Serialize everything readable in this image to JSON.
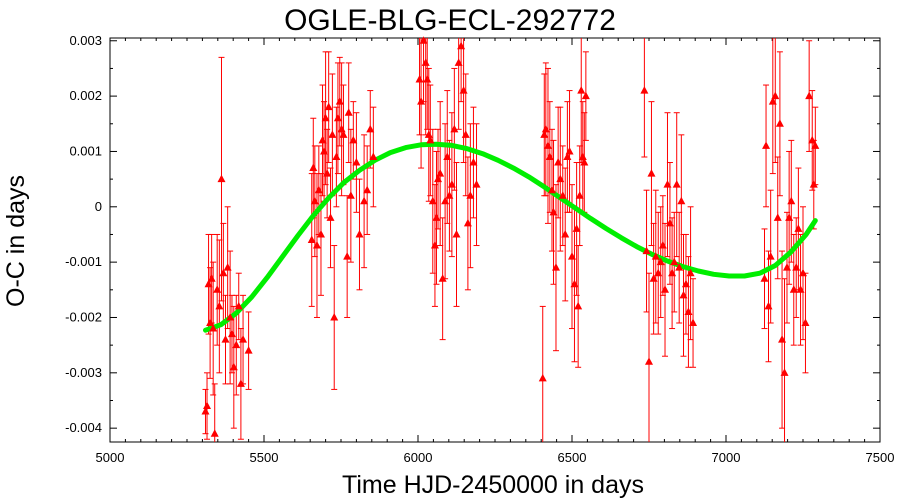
{
  "chart_data": {
    "type": "scatter",
    "title": "OGLE-BLG-ECL-292772",
    "xlabel": "Time HJD-2450000 in days",
    "ylabel": "O-C in days",
    "xlim": [
      5000,
      7500
    ],
    "ylim": [
      -0.00425,
      0.00305
    ],
    "xticks": [
      5000,
      5500,
      6000,
      6500,
      7000,
      7500
    ],
    "xtick_labels": [
      "5000",
      "5500",
      "6000",
      "6500",
      "7000",
      "7500"
    ],
    "yticks": [
      -0.004,
      -0.003,
      -0.002,
      -0.001,
      0,
      0.001,
      0.002,
      0.003
    ],
    "ytick_labels": [
      "-0.004",
      "-0.003",
      "-0.002",
      "-0.001",
      "0",
      "0.001",
      "0.002",
      "0.003"
    ],
    "grid": false,
    "colors": {
      "points": "#ff0000",
      "fit": "#00ee00"
    },
    "series": [
      {
        "type": "scatter-errorbar",
        "marker": "triangle",
        "x": [
          5310,
          5315,
          5320,
          5325,
          5330,
          5335,
          5340,
          5348,
          5355,
          5362,
          5368,
          5375,
          5382,
          5390,
          5396,
          5402,
          5410,
          5418,
          5425,
          5432,
          5450,
          5655,
          5660,
          5665,
          5672,
          5678,
          5685,
          5690,
          5695,
          5700,
          5705,
          5710,
          5716,
          5722,
          5728,
          5735,
          5740,
          5746,
          5752,
          5758,
          5770,
          5775,
          5782,
          5790,
          5800,
          5810,
          5825,
          5835,
          5845,
          5855,
          6005,
          6010,
          6018,
          6025,
          6030,
          6035,
          6040,
          6048,
          6055,
          6060,
          6065,
          6072,
          6080,
          6088,
          6095,
          6102,
          6110,
          6118,
          6125,
          6132,
          6140,
          6148,
          6155,
          6162,
          6170,
          6180,
          6190,
          6405,
          6410,
          6415,
          6422,
          6428,
          6435,
          6440,
          6448,
          6455,
          6462,
          6470,
          6478,
          6485,
          6492,
          6500,
          6508,
          6515,
          6520,
          6525,
          6530,
          6535,
          6540,
          6545,
          6735,
          6742,
          6750,
          6758,
          6765,
          6772,
          6780,
          6788,
          6795,
          6802,
          6810,
          6818,
          6825,
          6832,
          6840,
          6848,
          6855,
          6862,
          6870,
          6878,
          6885,
          6893,
          7125,
          7130,
          7138,
          7145,
          7152,
          7160,
          7168,
          7175,
          7182,
          7190,
          7198,
          7205,
          7212,
          7220,
          7228,
          7235,
          7242,
          7250,
          7258,
          7270,
          7280,
          7285,
          7290
        ],
        "y": [
          -0.0037,
          -0.0036,
          -0.0014,
          -0.0021,
          -0.0013,
          -0.0022,
          -0.0041,
          -0.0015,
          -0.0018,
          0.0005,
          -0.0012,
          -0.0024,
          -0.0011,
          -0.002,
          -0.0023,
          -0.0029,
          -0.0025,
          -0.0018,
          -0.0032,
          -0.0024,
          -0.0026,
          -0.0006,
          0.0007,
          0.0001,
          -0.0007,
          0.0003,
          -0.0005,
          0.0012,
          0.001,
          0.0016,
          0.0006,
          0.0018,
          -0.0002,
          0.0013,
          -0.002,
          0.0009,
          0.0016,
          0.0019,
          0.0014,
          0.0013,
          -0.0009,
          0.0017,
          0.0002,
          0.0012,
          0.0008,
          -0.0005,
          0.0001,
          0.0003,
          0.0014,
          0.0009,
          0.0023,
          0.0019,
          0.003,
          0.0026,
          0.0023,
          0.0013,
          0.0012,
          0.0001,
          -0.0007,
          -0.0002,
          0.0005,
          0.0006,
          -0.0013,
          0.0001,
          0.0009,
          0.0002,
          0.0004,
          0.0014,
          -0.0005,
          0.0026,
          0.0029,
          0.0021,
          0.0013,
          -0.0003,
          0.0002,
          0.0008,
          0.0004,
          -0.0031,
          0.0013,
          0.0014,
          0.0011,
          0.0009,
          0.0003,
          -0.0001,
          -0.0011,
          0.0008,
          0.0005,
          0.0002,
          -0.0005,
          0.0009,
          0.001,
          -0.0009,
          -0.0014,
          -0.0004,
          -0.0018,
          0.0002,
          0.0021,
          0.0009,
          0.0008,
          0.002,
          0.0021,
          -0.0008,
          -0.0028,
          0.0006,
          -0.0013,
          -0.0009,
          -0.0012,
          -0.001,
          -0.0007,
          -0.0015,
          0.0004,
          -0.0003,
          -0.0012,
          -0.001,
          0.0004,
          -0.0011,
          0.0001,
          -0.0016,
          -0.0014,
          -0.0019,
          -0.0012,
          -0.0021,
          -0.0013,
          0.0011,
          -0.0018,
          -0.0009,
          0.0019,
          0.002,
          -0.0002,
          0.0015,
          -0.0024,
          -0.003,
          -0.0011,
          -0.0002,
          0.0001,
          -0.0015,
          -0.0011,
          -0.0004,
          -0.0015,
          -0.0012,
          -0.0021,
          0.002,
          0.0012,
          0.0004,
          0.0011
        ],
        "yerr": [
          0.0004,
          0.0006,
          0.0009,
          0.001,
          0.0008,
          0.0012,
          0.0009,
          0.001,
          0.0012,
          0.0022,
          0.0009,
          0.0008,
          0.0011,
          0.0012,
          0.0007,
          0.0011,
          0.0009,
          0.0006,
          0.001,
          0.0008,
          0.0007,
          0.0012,
          0.0009,
          0.001,
          0.0013,
          0.0008,
          0.0011,
          0.001,
          0.0009,
          0.0012,
          0.0008,
          0.001,
          0.0009,
          0.0011,
          0.0013,
          0.0009,
          0.001,
          0.0008,
          0.0012,
          0.0009,
          0.0011,
          0.0009,
          0.0012,
          0.0007,
          0.0009,
          0.001,
          0.0012,
          0.0008,
          0.0007,
          0.0009,
          0.001,
          0.0012,
          0.0011,
          0.0013,
          0.0009,
          0.0012,
          0.001,
          0.0013,
          0.0011,
          0.0012,
          0.0009,
          0.0013,
          0.0011,
          0.0014,
          0.0012,
          0.001,
          0.0013,
          0.0011,
          0.0013,
          0.0012,
          0.001,
          0.0013,
          0.0011,
          0.0012,
          0.0013,
          0.001,
          0.0011,
          0.0013,
          0.0011,
          0.0012,
          0.0014,
          0.001,
          0.0011,
          0.0013,
          0.0015,
          0.001,
          0.0013,
          0.0009,
          0.0012,
          0.001,
          0.0011,
          0.0013,
          0.0014,
          0.0012,
          0.0011,
          0.0009,
          0.0013,
          0.001,
          0.0009,
          0.0008,
          0.0012,
          0.0011,
          0.0016,
          0.0013,
          0.001,
          0.0012,
          0.0011,
          0.001,
          0.0009,
          0.0012,
          0.0013,
          0.0011,
          0.001,
          0.0009,
          0.0013,
          0.001,
          0.0012,
          0.0011,
          0.0009,
          0.001,
          0.0012,
          0.0008,
          0.0009,
          0.0011,
          0.001,
          0.0012,
          0.0013,
          0.0012,
          0.0011,
          0.0013,
          0.0016,
          0.0017,
          0.001,
          0.0012,
          0.0011,
          0.001,
          0.0009,
          0.0011,
          0.001,
          0.0012,
          0.0009,
          0.001,
          0.0009,
          0.0008,
          0.0007
        ]
      },
      {
        "type": "fit-line",
        "x": [
          5310,
          5360,
          5410,
          5460,
          5510,
          5560,
          5610,
          5660,
          5710,
          5760,
          5810,
          5860,
          5910,
          5960,
          6010,
          6060,
          6110,
          6160,
          6210,
          6260,
          6310,
          6360,
          6410,
          6460,
          6510,
          6560,
          6610,
          6660,
          6710,
          6760,
          6810,
          6860,
          6910,
          6960,
          7010,
          7060,
          7110,
          7160,
          7210,
          7260,
          7290
        ],
        "y": [
          -0.00223,
          -0.00213,
          -0.00192,
          -0.00163,
          -0.00128,
          -0.0009,
          -0.00052,
          -0.00016,
          0.00016,
          0.00044,
          0.00066,
          0.00084,
          0.00098,
          0.00107,
          0.00112,
          0.00113,
          0.00111,
          0.00105,
          0.00096,
          0.00084,
          0.0007,
          0.00054,
          0.00036,
          0.00017,
          -2e-05,
          -0.00021,
          -0.00039,
          -0.00056,
          -0.00072,
          -0.00086,
          -0.00098,
          -0.00108,
          -0.00116,
          -0.00122,
          -0.00125,
          -0.00125,
          -0.0012,
          -0.00106,
          -0.00082,
          -0.0005,
          -0.00025
        ]
      }
    ]
  }
}
